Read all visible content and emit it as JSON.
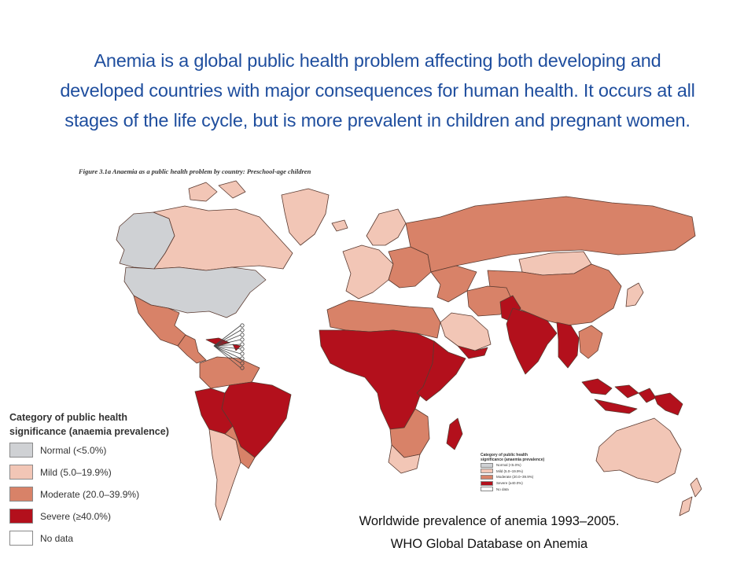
{
  "headline": {
    "lines": [
      "Anemia is a global public health problem affecting both developing and",
      "developed countries with major consequences for human health. It occurs at all",
      "stages of the life cycle, but is more prevalent in children and pregnant women."
    ]
  },
  "figure": {
    "title": "Figure 3.1a  Anaemia as a public health problem by country: Preschool-age children"
  },
  "colors": {
    "normal": "#cfd1d4",
    "mild": "#f2c6b6",
    "moderate": "#d88268",
    "severe": "#b3101c",
    "no_data": "#ffffff",
    "border": "#5a3a30",
    "headline": "#1f4e9e"
  },
  "legend": {
    "title_line1": "Category of public health",
    "title_line2": "significance (anaemia prevalence)",
    "items": [
      {
        "label": "Normal (<5.0%)",
        "category": "normal"
      },
      {
        "label": "Mild (5.0–19.9%)",
        "category": "mild"
      },
      {
        "label": "Moderate (20.0–39.9%)",
        "category": "moderate"
      },
      {
        "label": "Severe (≥40.0%)",
        "category": "severe"
      },
      {
        "label": "No data",
        "category": "no_data"
      }
    ]
  },
  "legend_small": {
    "title_line1": "Category of public health",
    "title_line2": "significance (anaemia prevalence)",
    "items": [
      {
        "label": "Normal (<5.0%)",
        "category": "normal"
      },
      {
        "label": "Mild (5.0–19.9%)",
        "category": "mild"
      },
      {
        "label": "Moderate (20.0–39.9%)",
        "category": "moderate"
      },
      {
        "label": "Severe (≥40.0%)",
        "category": "severe"
      },
      {
        "label": "No data",
        "category": "no_data"
      }
    ]
  },
  "caption": {
    "line1": "Worldwide prevalence of anemia 1993–2005.",
    "line2": "WHO Global Database on Anemia"
  },
  "regions": [
    {
      "name": "alaska-western-canada",
      "category": "normal"
    },
    {
      "name": "canada",
      "category": "mild"
    },
    {
      "name": "greenland",
      "category": "mild"
    },
    {
      "name": "usa",
      "category": "normal"
    },
    {
      "name": "mexico",
      "category": "moderate"
    },
    {
      "name": "central-america",
      "category": "moderate"
    },
    {
      "name": "caribbean",
      "category": "severe"
    },
    {
      "name": "northern-south-america",
      "category": "moderate"
    },
    {
      "name": "brazil",
      "category": "severe"
    },
    {
      "name": "peru-bolivia",
      "category": "severe"
    },
    {
      "name": "chile-argentina",
      "category": "mild"
    },
    {
      "name": "paraguay-uruguay",
      "category": "moderate"
    },
    {
      "name": "iceland",
      "category": "mild"
    },
    {
      "name": "scandinavia",
      "category": "mild"
    },
    {
      "name": "western-europe",
      "category": "mild"
    },
    {
      "name": "eastern-europe",
      "category": "moderate"
    },
    {
      "name": "russia",
      "category": "moderate"
    },
    {
      "name": "mongolia",
      "category": "mild"
    },
    {
      "name": "china",
      "category": "moderate"
    },
    {
      "name": "japan",
      "category": "mild"
    },
    {
      "name": "north-africa",
      "category": "moderate"
    },
    {
      "name": "west-central-africa",
      "category": "severe"
    },
    {
      "name": "east-africa",
      "category": "severe"
    },
    {
      "name": "southern-africa",
      "category": "moderate"
    },
    {
      "name": "south-africa",
      "category": "mild"
    },
    {
      "name": "madagascar",
      "category": "severe"
    },
    {
      "name": "middle-east",
      "category": "moderate"
    },
    {
      "name": "arabian-peninsula",
      "category": "mild"
    },
    {
      "name": "yemen",
      "category": "severe"
    },
    {
      "name": "iran-afghanistan",
      "category": "moderate"
    },
    {
      "name": "pakistan",
      "category": "severe"
    },
    {
      "name": "india",
      "category": "severe"
    },
    {
      "name": "myanmar-thailand",
      "category": "severe"
    },
    {
      "name": "southeast-asia",
      "category": "moderate"
    },
    {
      "name": "indonesia",
      "category": "severe"
    },
    {
      "name": "papua-new-guinea",
      "category": "severe"
    },
    {
      "name": "australia",
      "category": "mild"
    },
    {
      "name": "new-zealand",
      "category": "mild"
    }
  ]
}
